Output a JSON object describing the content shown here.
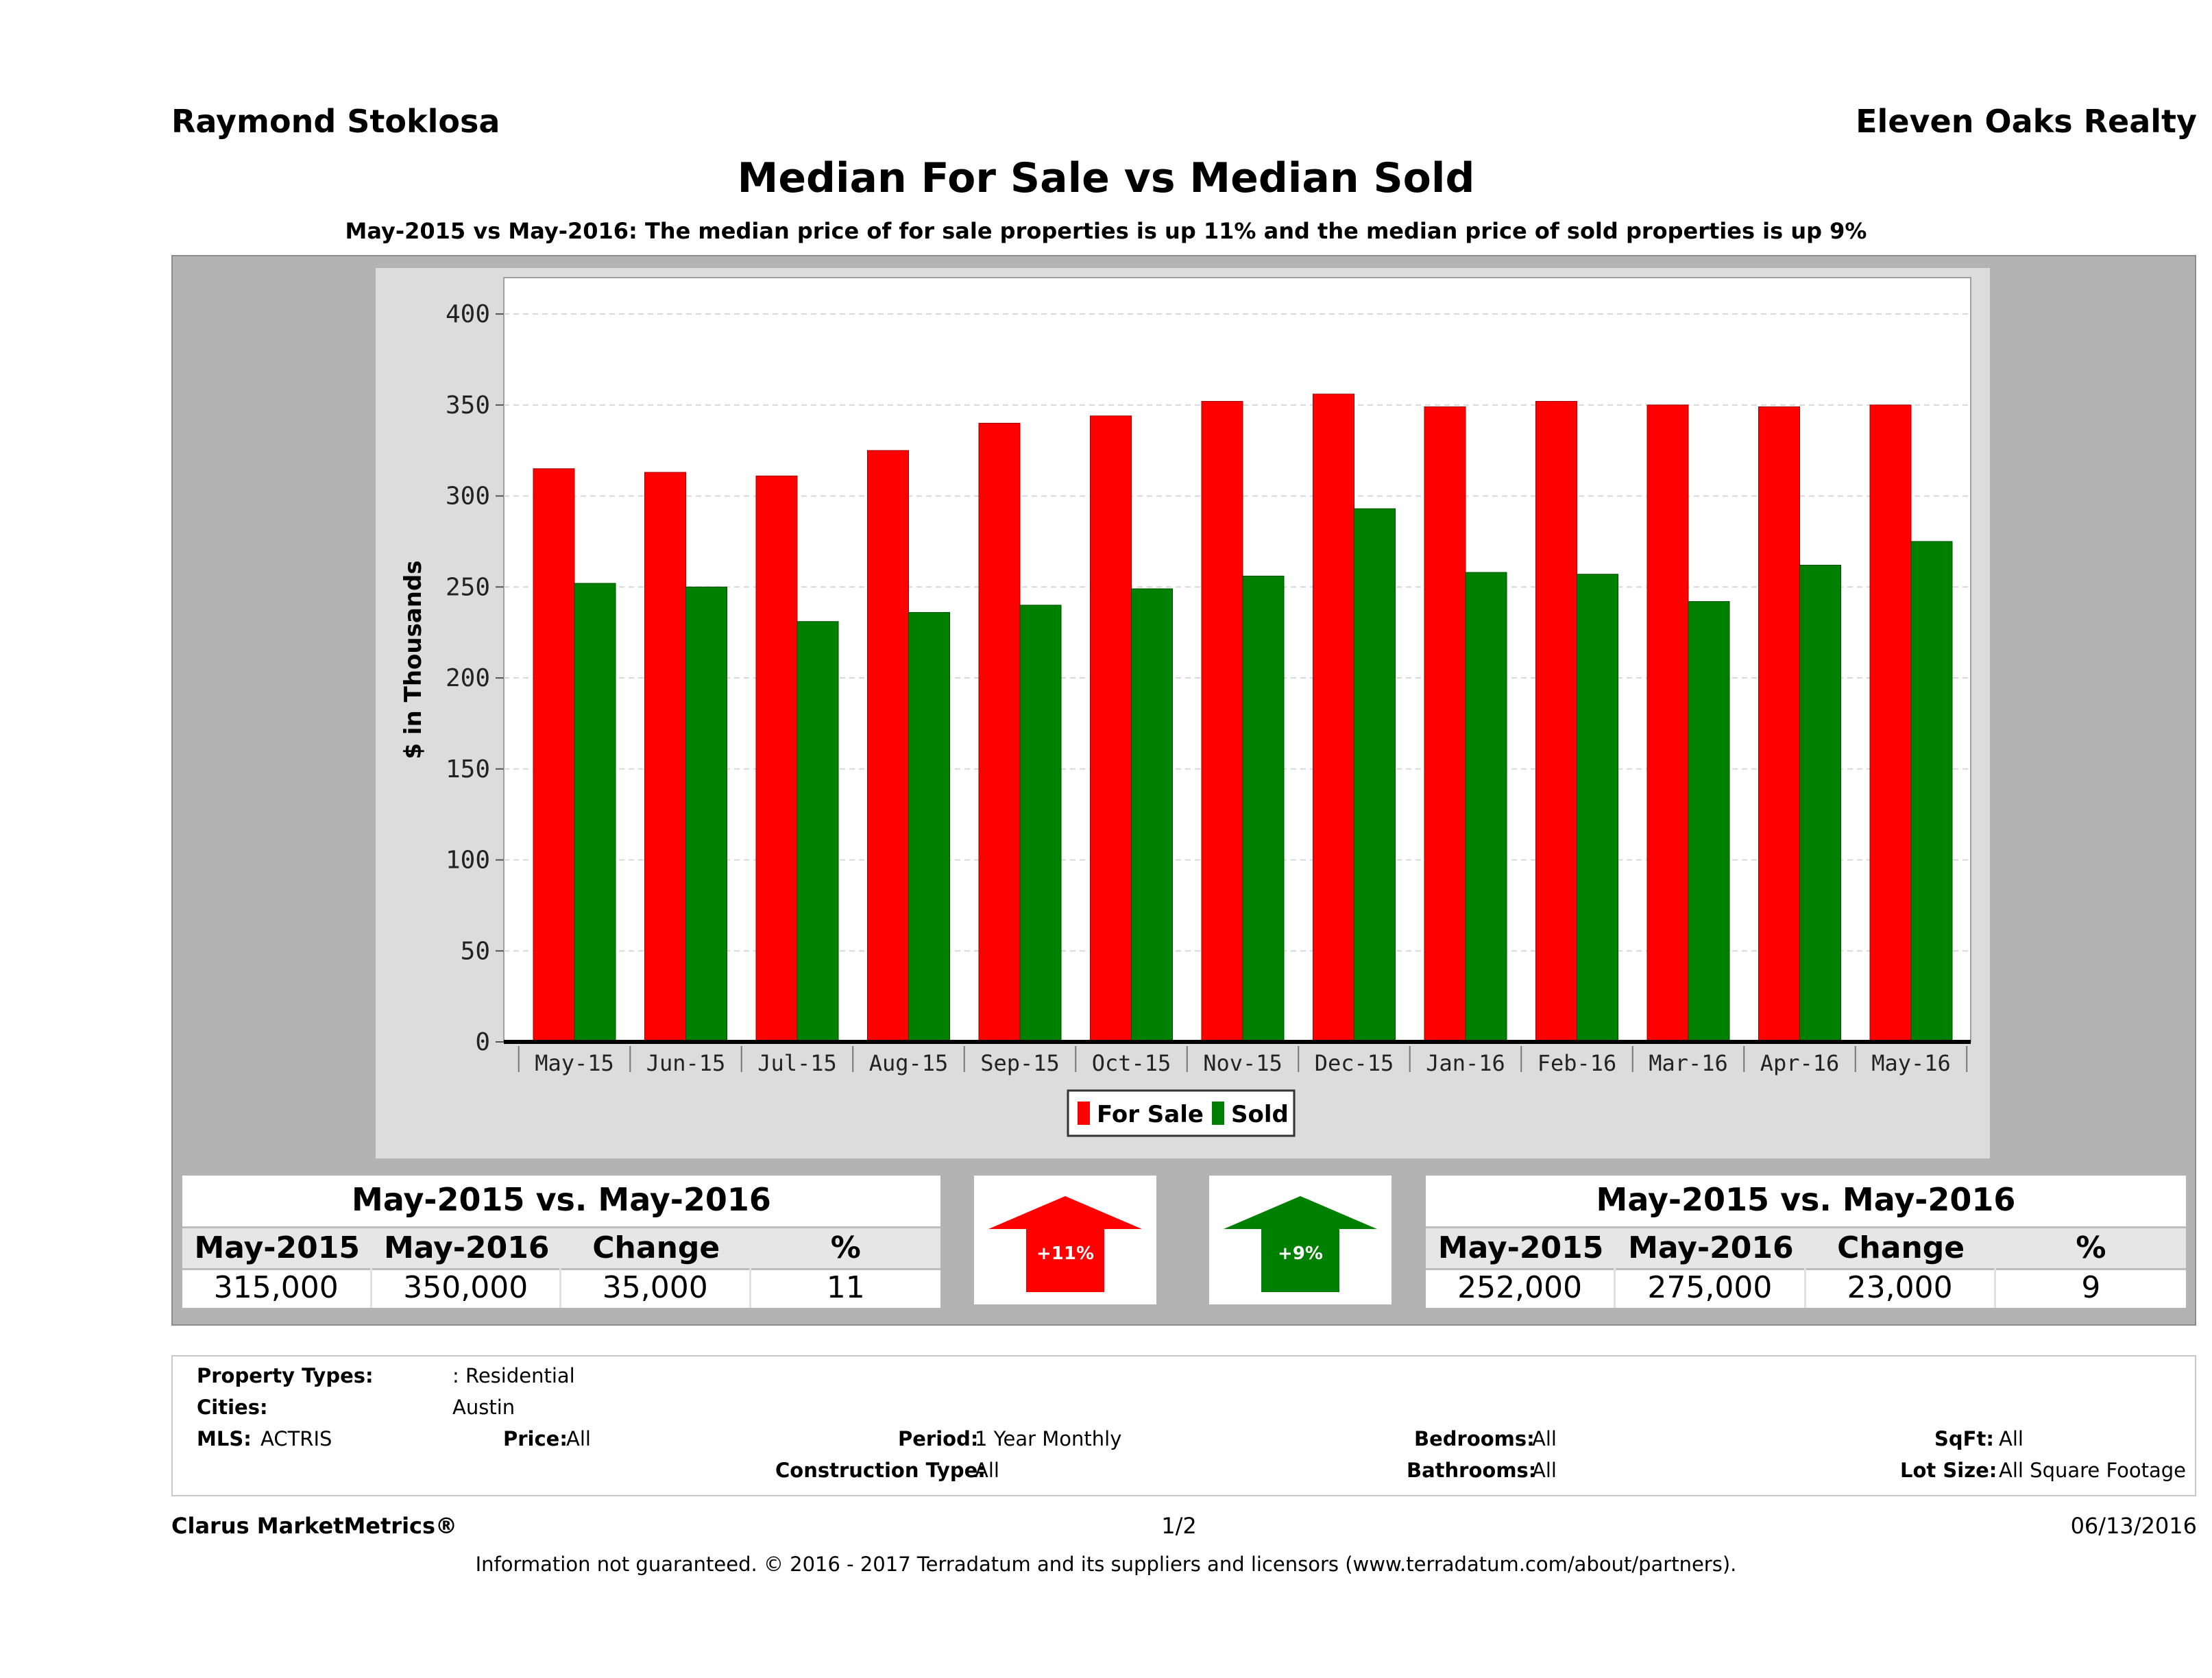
{
  "header": {
    "agent_name": "Raymond Stoklosa",
    "brokerage": "Eleven Oaks Realty"
  },
  "title": "Median For Sale vs Median Sold",
  "subtitle": "May-2015 vs May-2016: The median price of for sale properties is up 11% and the median price of sold properties is up 9%",
  "colors": {
    "for_sale": "#ff0000",
    "sold": "#008000"
  },
  "chart_data": {
    "type": "bar",
    "categories": [
      "May-15",
      "Jun-15",
      "Jul-15",
      "Aug-15",
      "Sep-15",
      "Oct-15",
      "Nov-15",
      "Dec-15",
      "Jan-16",
      "Feb-16",
      "Mar-16",
      "Apr-16",
      "May-16"
    ],
    "series": [
      {
        "name": "For Sale",
        "values": [
          315,
          313,
          311,
          325,
          340,
          344,
          352,
          356,
          349,
          352,
          350,
          349,
          350
        ]
      },
      {
        "name": "Sold",
        "values": [
          252,
          250,
          231,
          236,
          240,
          249,
          256,
          293,
          258,
          257,
          242,
          262,
          275
        ]
      }
    ],
    "ylabel": "$ in Thousands",
    "ylim": [
      0,
      420
    ],
    "yticks": [
      0,
      50,
      100,
      150,
      200,
      250,
      300,
      350,
      400
    ],
    "grid": true,
    "legend": "bottom-center"
  },
  "for_sale_table": {
    "title": "May-2015 vs. May-2016",
    "headers": [
      "May-2015",
      "May-2016",
      "Change",
      "%"
    ],
    "values": [
      "315,000",
      "350,000",
      "35,000",
      "11"
    ],
    "arrow_label": "+11%"
  },
  "sold_table": {
    "title": "May-2015 vs. May-2016",
    "headers": [
      "May-2015",
      "May-2016",
      "Change",
      "%"
    ],
    "values": [
      "252,000",
      "275,000",
      "23,000",
      "9"
    ],
    "arrow_label": "+9%"
  },
  "criteria": {
    "property_types_label": "Property Types:",
    "property_types_value": ": Residential",
    "cities_label": "Cities:",
    "cities_value": "Austin",
    "mls_label": "MLS:",
    "mls_value": "ACTRIS",
    "price_label": "Price:",
    "price_value": "All",
    "period_label": "Period:",
    "period_value": "1 Year Monthly",
    "construction_label": "Construction Type:",
    "construction_value": "All",
    "bedrooms_label": "Bedrooms:",
    "bedrooms_value": "All",
    "bathrooms_label": "Bathrooms:",
    "bathrooms_value": "All",
    "sqft_label": "SqFt:",
    "sqft_value": "All",
    "lot_label": "Lot Size:",
    "lot_value": "All Square Footage"
  },
  "footer": {
    "brand": "Clarus MarketMetrics®",
    "page": "1/2",
    "date": "06/13/2016",
    "disclaimer": "Information not guaranteed. © 2016 - 2017 Terradatum and its suppliers and licensors (www.terradatum.com/about/partners)."
  }
}
